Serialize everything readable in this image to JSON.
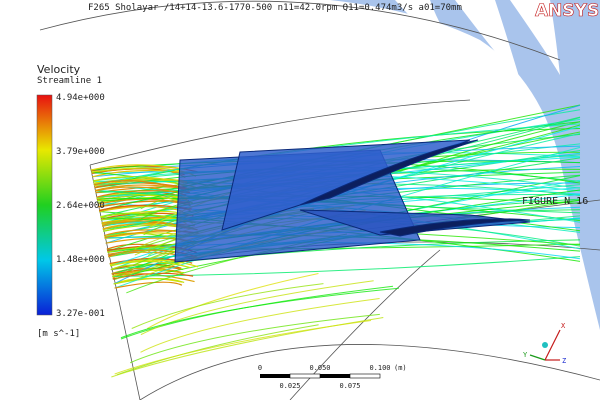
{
  "header": {
    "title": "F265 Sholayar /14+14-13.6-1770-500  n11=42.0rpm  Q11=0.474m3/s  a01=70mm",
    "logo": "ANSYS"
  },
  "legend": {
    "title": "Velocity",
    "subtitle": "Streamline 1",
    "ticks": [
      "4.94e+000",
      "3.79e+000",
      "2.64e+000",
      "1.48e+000",
      "3.27e-001"
    ],
    "units": "[m s^-1]"
  },
  "figure_label": "FIGURE  N  16",
  "scale_bar": {
    "top": [
      "0",
      "0.050",
      "0.100"
    ],
    "unit": "(m)",
    "bottom": [
      "0.025",
      "0.075"
    ]
  },
  "axes": {
    "x": "X",
    "y": "Y",
    "z": "Z"
  }
}
